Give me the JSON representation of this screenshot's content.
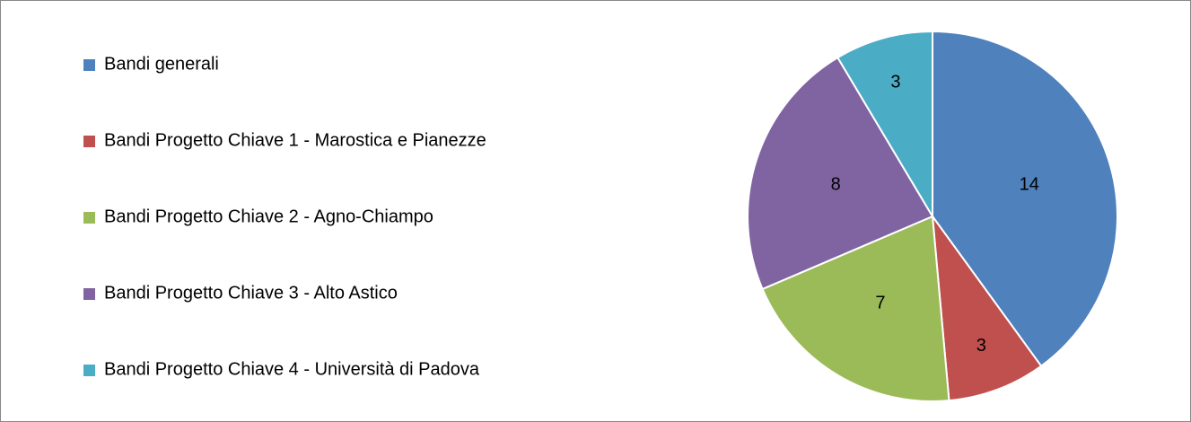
{
  "chart_data": {
    "type": "pie",
    "categories": [
      "Bandi generali",
      "Bandi Progetto Chiave 1 - Marostica e Pianezze",
      "Bandi Progetto Chiave 2 - Agno-Chiampo",
      "Bandi Progetto Chiave 3 - Alto Astico",
      "Bandi Progetto Chiave 4 - Università di Padova"
    ],
    "values": [
      14,
      3,
      7,
      8,
      3
    ],
    "colors": [
      "#4f81bd",
      "#c0504d",
      "#9bbb59",
      "#8064a2",
      "#4bacc6"
    ],
    "legend": "left"
  }
}
